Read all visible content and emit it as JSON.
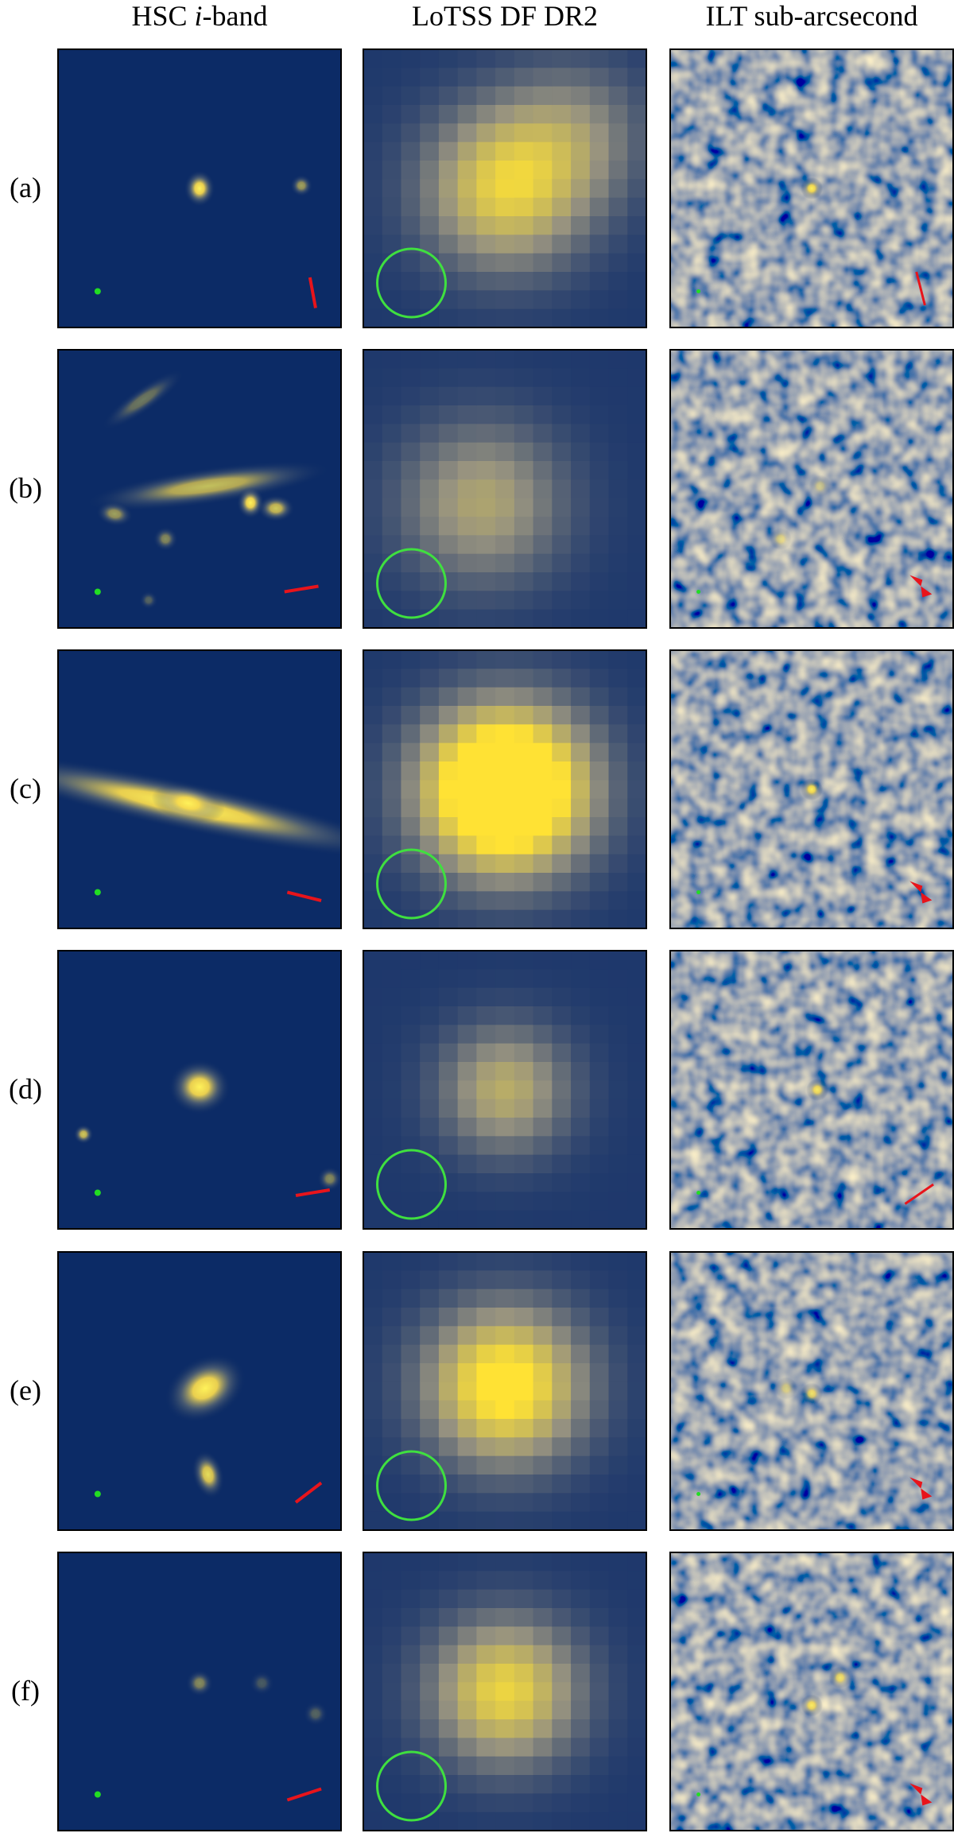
{
  "header": {
    "columns": [
      {
        "prefix": "HSC",
        "italic": "i",
        "suffix": "-band"
      },
      {
        "text": "LoTSS DF DR2"
      },
      {
        "text": "ILT sub-arcsecond"
      }
    ]
  },
  "rows": [
    {
      "label": "(a)"
    },
    {
      "label": "(b)"
    },
    {
      "label": "(c)"
    },
    {
      "label": "(d)"
    },
    {
      "label": "(e)"
    },
    {
      "label": "(f)"
    }
  ]
}
